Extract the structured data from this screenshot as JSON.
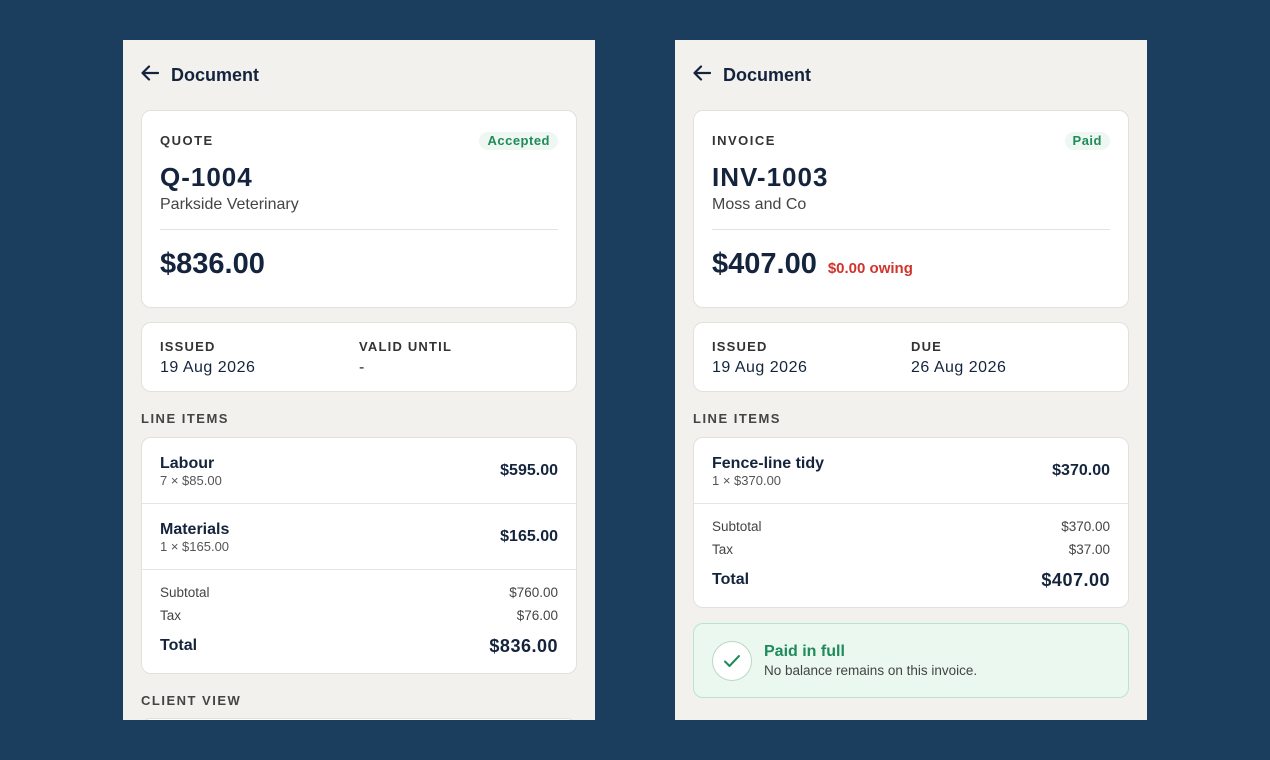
{
  "panels": [
    {
      "header": {
        "title": "Document"
      },
      "summary": {
        "type": "QUOTE",
        "status": "Accepted",
        "number": "Q-1004",
        "client": "Parkside Veterinary",
        "amount": "$836.00"
      },
      "dates": [
        {
          "label": "ISSUED",
          "value": "19 Aug 2026"
        },
        {
          "label": "VALID UNTIL",
          "value": "-"
        }
      ],
      "line_items_label": "LINE ITEMS",
      "line_items": [
        {
          "name": "Labour",
          "detail": "7 × $85.00",
          "amount": "$595.00"
        },
        {
          "name": "Materials",
          "detail": "1 × $165.00",
          "amount": "$165.00"
        }
      ],
      "totals": [
        {
          "label": "Subtotal",
          "value": "$760.00"
        },
        {
          "label": "Tax",
          "value": "$76.00"
        },
        {
          "label": "Total",
          "value": "$836.00"
        }
      ],
      "client_view_label": "CLIENT VIEW"
    },
    {
      "header": {
        "title": "Document"
      },
      "summary": {
        "type": "INVOICE",
        "status": "Paid",
        "number": "INV-1003",
        "client": "Moss and Co",
        "amount": "$407.00",
        "owing": "$0.00 owing"
      },
      "dates": [
        {
          "label": "ISSUED",
          "value": "19 Aug 2026"
        },
        {
          "label": "DUE",
          "value": "26 Aug 2026"
        }
      ],
      "line_items_label": "LINE ITEMS",
      "line_items": [
        {
          "name": "Fence-line tidy",
          "detail": "1 × $370.00",
          "amount": "$370.00"
        }
      ],
      "totals": [
        {
          "label": "Subtotal",
          "value": "$370.00"
        },
        {
          "label": "Tax",
          "value": "$37.00"
        },
        {
          "label": "Total",
          "value": "$407.00"
        }
      ],
      "banner": {
        "title": "Paid in full",
        "text": "No balance remains on this invoice."
      }
    }
  ]
}
